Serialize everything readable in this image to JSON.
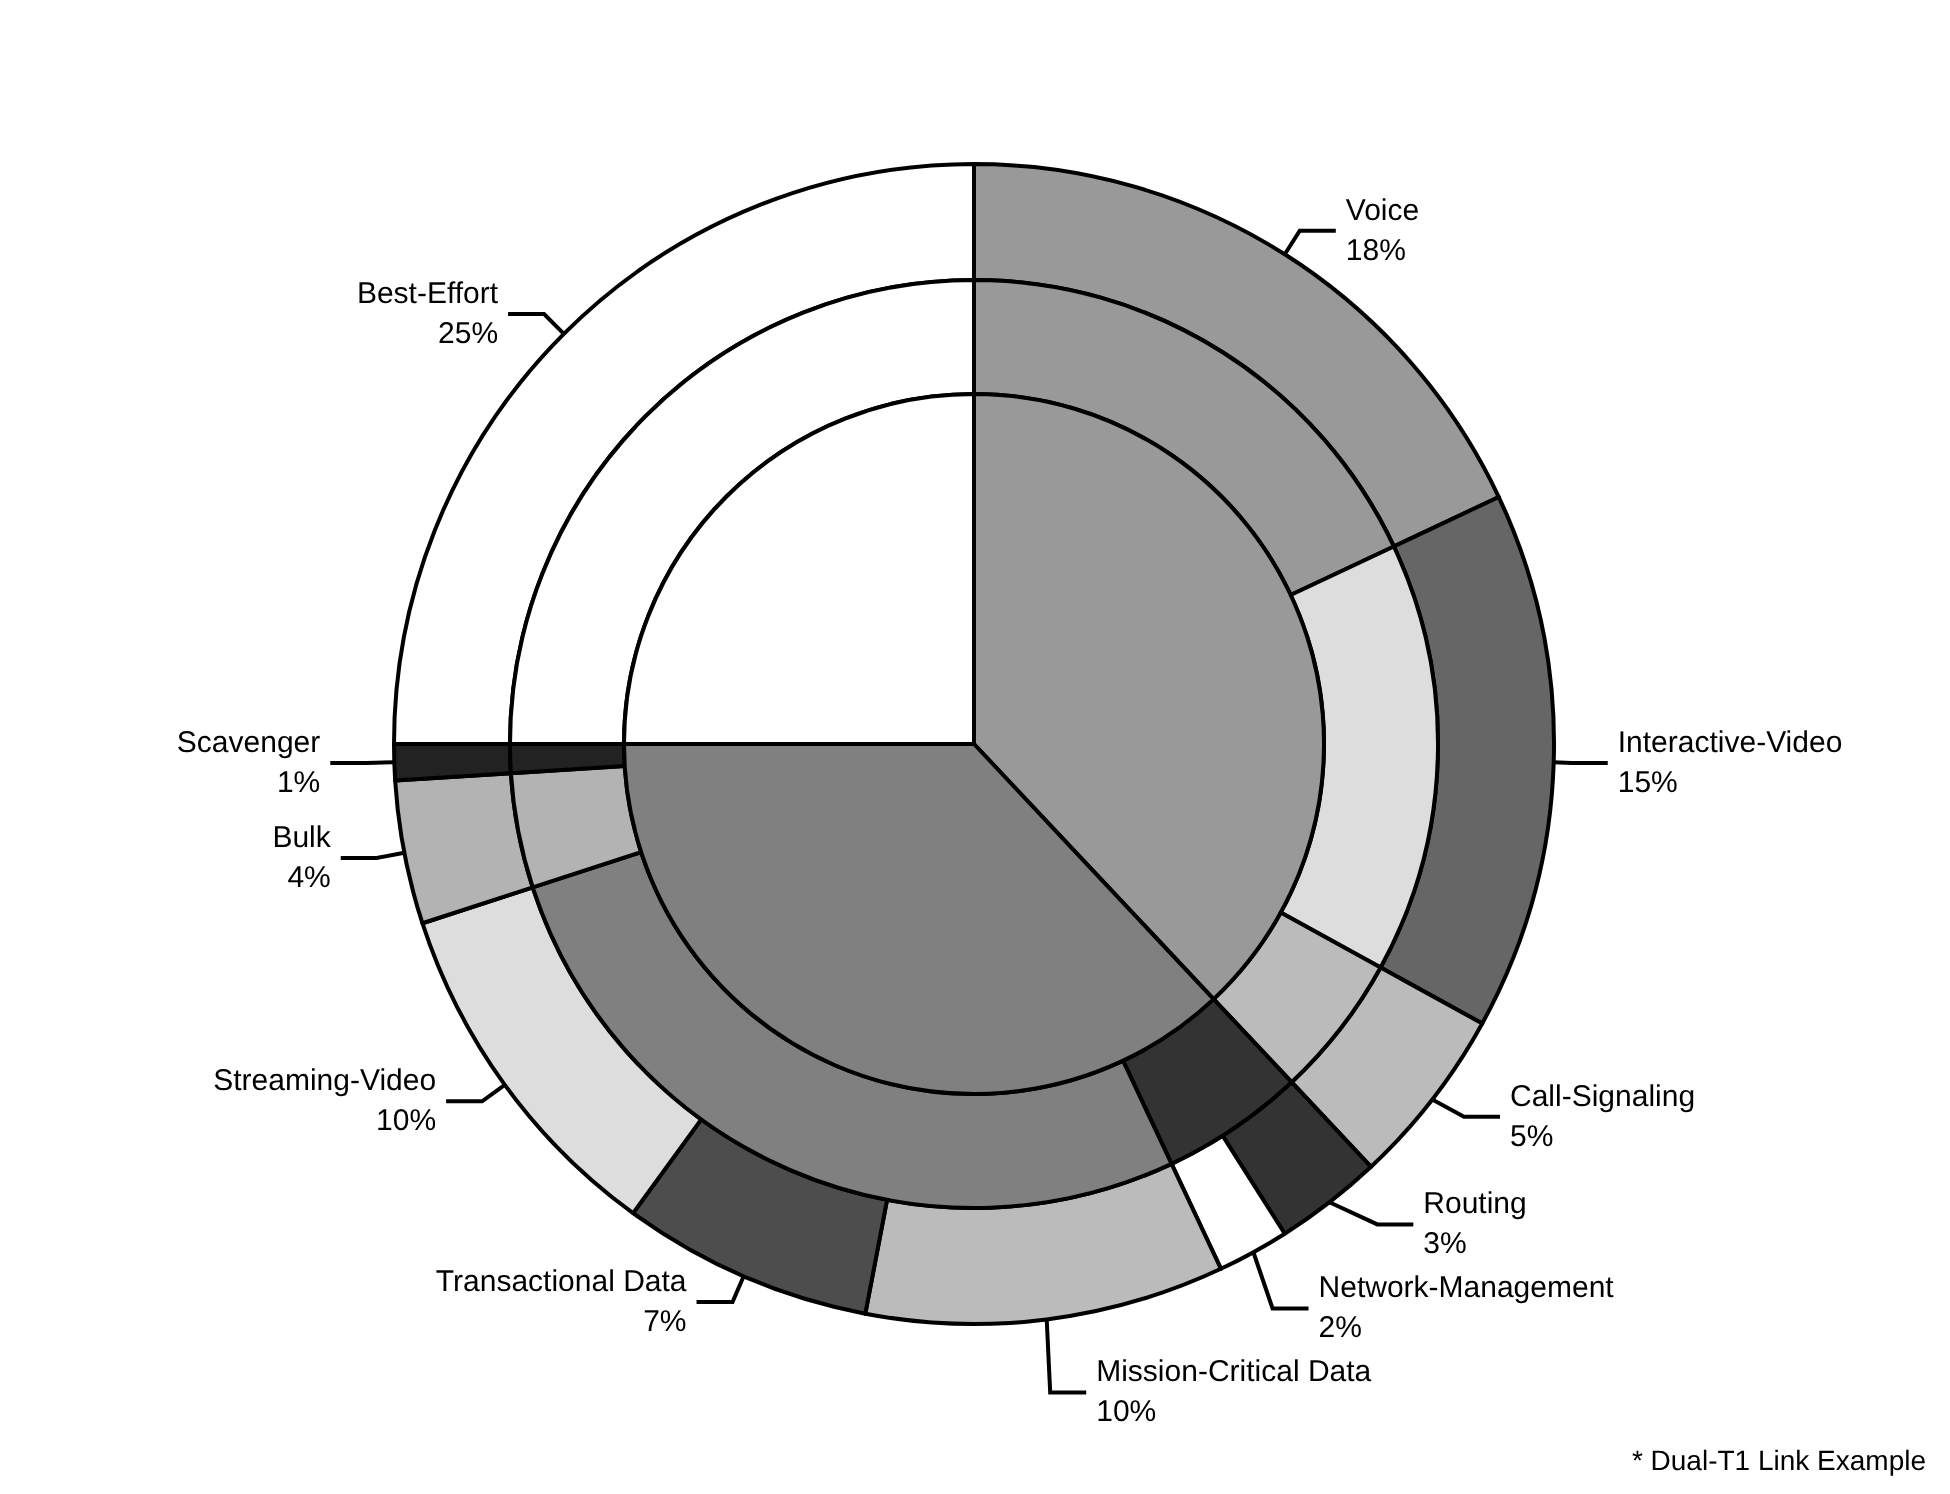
{
  "chart_data": [
    {
      "type": "donut",
      "categories": [
        "Voice",
        "Interactive-Video",
        "Call-Signaling",
        "Routing",
        "Network-Management",
        "Mission-Critical Data",
        "Transactional Data",
        "Streaming-Video",
        "Bulk",
        "Scavenger",
        "Best-Effort"
      ],
      "values": [
        18,
        15,
        5,
        3,
        2,
        10,
        7,
        10,
        4,
        1,
        25
      ],
      "colors": [
        "#999999",
        "#666666",
        "#bbbbbb",
        "#333333",
        "#ffffff",
        "#bbbbbb",
        "#4d4d4d",
        "#dddddd",
        "#b3b3b3",
        "#222222",
        "#ffffff"
      ],
      "value_labels": [
        "18%",
        "15%",
        "5%",
        "3%",
        "2%",
        "10%",
        "7%",
        "10%",
        "4%",
        "1%",
        "25%"
      ],
      "legend": false,
      "annotations": [
        "* Dual-T1 Link Example"
      ]
    },
    {
      "type": "donut",
      "categories": [
        null,
        null,
        null,
        null,
        null,
        null,
        null,
        null
      ],
      "values": [
        18,
        15,
        5,
        5,
        27,
        4,
        1,
        25
      ],
      "colors": [
        "#999999",
        "#dddddd",
        "#bbbbbb",
        "#333333",
        "#808080",
        "#b3b3b3",
        "#222222",
        "#ffffff"
      ],
      "legend": false
    },
    {
      "type": "pie",
      "categories": [
        null,
        null,
        null
      ],
      "values": [
        38,
        37,
        25
      ],
      "colors": [
        "#999999",
        "#808080",
        "#ffffff"
      ],
      "legend": false
    }
  ]
}
